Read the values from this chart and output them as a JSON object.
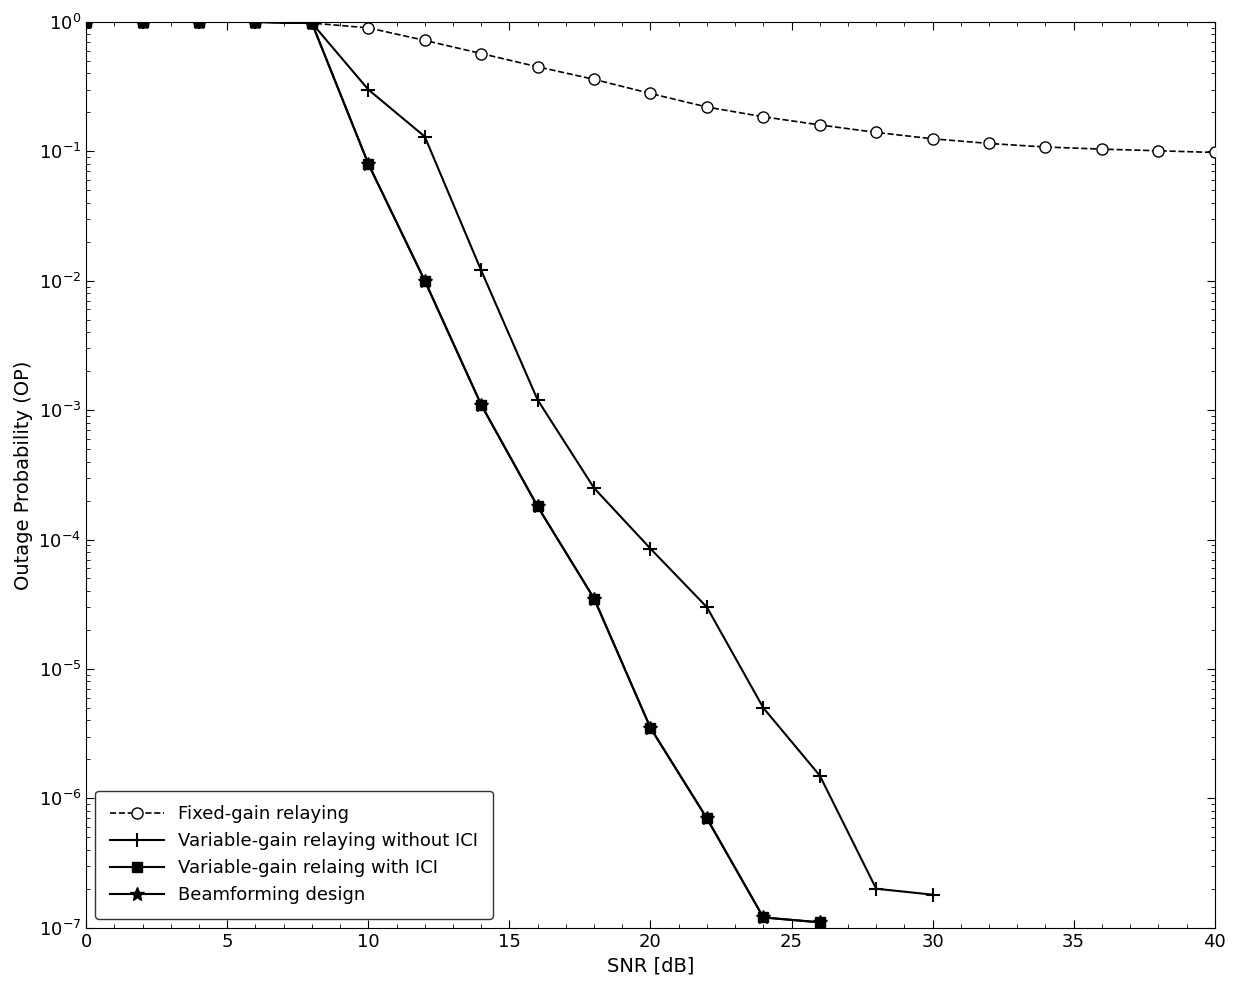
{
  "title": "",
  "xlabel": "SNR [dB]",
  "ylabel": "Outage Probability (OP)",
  "xlim": [
    0,
    40
  ],
  "ylim_log": [
    -7,
    0
  ],
  "x_ticks": [
    0,
    5,
    10,
    15,
    20,
    25,
    30,
    35,
    40
  ],
  "background_color": "#ffffff",
  "fixed_gain": {
    "x": [
      0,
      2,
      4,
      6,
      8,
      10,
      12,
      14,
      16,
      18,
      20,
      22,
      24,
      26,
      28,
      30,
      32,
      34,
      36,
      38,
      40
    ],
    "y": [
      1.0,
      1.0,
      1.0,
      1.0,
      0.98,
      0.9,
      0.72,
      0.57,
      0.45,
      0.36,
      0.28,
      0.22,
      0.185,
      0.16,
      0.14,
      0.125,
      0.115,
      0.108,
      0.104,
      0.101,
      0.098
    ],
    "label": "Fixed-gain relaying",
    "color": "#000000",
    "linestyle": "--",
    "marker": "o",
    "markersize": 8,
    "markerfacecolor": "white",
    "linewidth": 1.2
  },
  "variable_gain_no_ici": {
    "x": [
      0,
      2,
      4,
      6,
      8,
      10,
      12,
      14,
      16,
      18,
      20,
      22,
      24,
      26,
      28,
      30
    ],
    "y": [
      1.0,
      1.0,
      1.0,
      1.0,
      0.98,
      0.3,
      0.13,
      0.012,
      0.0012,
      0.00025,
      8.5e-05,
      3e-05,
      5e-06,
      1.5e-06,
      2e-07,
      1.8e-07
    ],
    "label": "Variable-gain relaying without ICI",
    "color": "#000000",
    "linestyle": "-",
    "marker": "+",
    "markersize": 10,
    "markeredgewidth": 1.5,
    "linewidth": 1.5
  },
  "variable_gain_ici": {
    "x": [
      0,
      2,
      4,
      6,
      8,
      10,
      12,
      14,
      16,
      18,
      20,
      22,
      24,
      26
    ],
    "y": [
      1.0,
      1.0,
      1.0,
      1.0,
      0.98,
      0.08,
      0.01,
      0.0011,
      0.00018,
      3.5e-05,
      3.5e-06,
      7e-07,
      1.2e-07,
      1.1e-07
    ],
    "label": "Variable-gain relaing with ICI",
    "color": "#000000",
    "linestyle": "-",
    "marker": "s",
    "markersize": 7,
    "markerfacecolor": "#000000",
    "linewidth": 1.5
  },
  "beamforming": {
    "x": [
      0,
      2,
      4,
      6,
      8,
      10,
      12,
      14,
      16,
      18,
      20,
      22,
      24,
      26
    ],
    "y": [
      1.0,
      1.0,
      1.0,
      1.0,
      0.98,
      0.08,
      0.01,
      0.0011,
      0.00018,
      3.5e-05,
      3.5e-06,
      7e-07,
      1.2e-07,
      1.1e-07
    ],
    "label": "Beamforming design",
    "color": "#000000",
    "linestyle": "-",
    "marker": "*",
    "markersize": 10,
    "markerfacecolor": "#000000",
    "linewidth": 1.5
  },
  "legend_loc": "lower left",
  "fontsize": 14
}
